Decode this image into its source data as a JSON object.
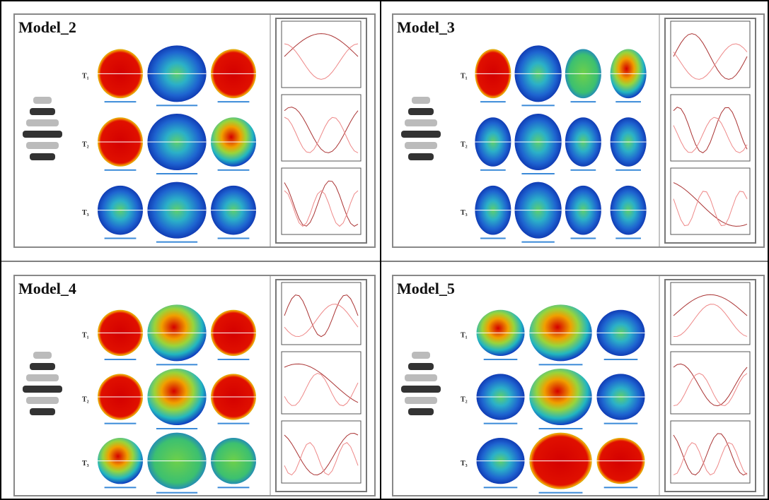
{
  "panels": [
    {
      "title": "Model_2",
      "rows": [
        "T₁",
        "T₂",
        "T₃"
      ]
    },
    {
      "title": "Model_3",
      "rows": [
        "T₁",
        "T₂",
        "T₃"
      ]
    },
    {
      "title": "Model_4",
      "rows": [
        "T₁",
        "T₂",
        "T₃"
      ]
    },
    {
      "title": "Model_5",
      "rows": [
        "T₁",
        "T₂",
        "T₃"
      ]
    }
  ]
}
